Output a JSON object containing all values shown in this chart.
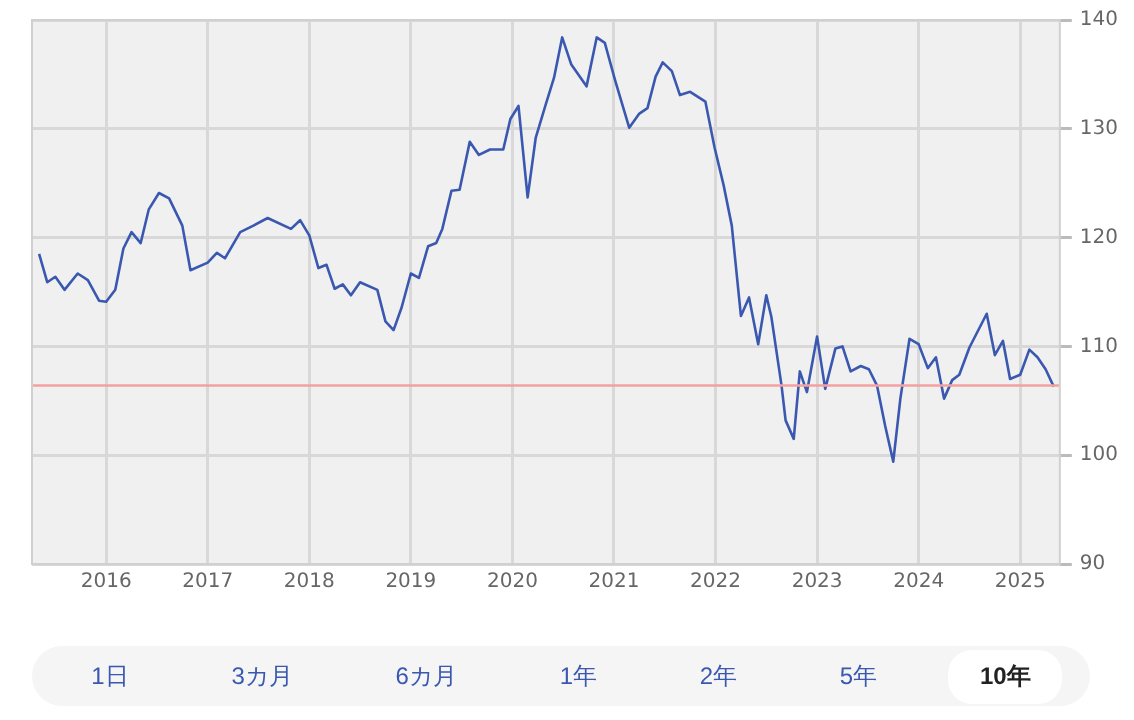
{
  "chart_data": {
    "type": "line",
    "x": [
      2015.34,
      2015.42,
      2015.5,
      2015.59,
      2015.72,
      2015.82,
      2015.93,
      2016.0,
      2016.09,
      2016.17,
      2016.25,
      2016.34,
      2016.42,
      2016.52,
      2016.62,
      2016.75,
      2016.83,
      2017.0,
      2017.09,
      2017.17,
      2017.32,
      2017.45,
      2017.59,
      2017.82,
      2017.91,
      2018.0,
      2018.09,
      2018.17,
      2018.25,
      2018.33,
      2018.41,
      2018.5,
      2018.67,
      2018.75,
      2018.83,
      2018.91,
      2019.0,
      2019.08,
      2019.17,
      2019.25,
      2019.31,
      2019.4,
      2019.48,
      2019.58,
      2019.67,
      2019.78,
      2019.91,
      2019.98,
      2020.06,
      2020.15,
      2020.23,
      2020.33,
      2020.41,
      2020.49,
      2020.58,
      2020.73,
      2020.83,
      2020.91,
      2021.01,
      2021.15,
      2021.25,
      2021.33,
      2021.41,
      2021.48,
      2021.57,
      2021.65,
      2021.75,
      2021.9,
      2021.99,
      2022.08,
      2022.16,
      2022.25,
      2022.33,
      2022.42,
      2022.5,
      2022.55,
      2022.65,
      2022.69,
      2022.77,
      2022.83,
      2022.9,
      2023.0,
      2023.08,
      2023.18,
      2023.25,
      2023.33,
      2023.43,
      2023.51,
      2023.59,
      2023.67,
      2023.75,
      2023.82,
      2023.91,
      2024.0,
      2024.09,
      2024.17,
      2024.25,
      2024.33,
      2024.4,
      2024.5,
      2024.67,
      2024.75,
      2024.83,
      2024.9,
      2025.0,
      2025.09,
      2025.17,
      2025.25,
      2025.33
    ],
    "series": [
      {
        "color": "#3a58b0",
        "values": [
          118.5,
          115.9,
          116.4,
          115.2,
          116.7,
          116.1,
          114.2,
          114.1,
          115.2,
          119.0,
          120.5,
          119.5,
          122.6,
          124.1,
          123.6,
          121.1,
          117.0,
          117.7,
          118.6,
          118.1,
          120.5,
          121.1,
          121.8,
          120.8,
          121.6,
          120.2,
          117.2,
          117.5,
          115.3,
          115.7,
          114.7,
          115.9,
          115.2,
          112.3,
          111.5,
          113.6,
          116.7,
          116.3,
          119.2,
          119.5,
          120.8,
          124.3,
          124.4,
          128.8,
          127.6,
          128.1,
          128.1,
          130.9,
          132.1,
          123.7,
          129.2,
          132.3,
          134.7,
          138.4,
          135.9,
          133.9,
          138.4,
          137.9,
          134.5,
          130.1,
          131.4,
          131.9,
          134.8,
          136.1,
          135.3,
          133.1,
          133.4,
          132.5,
          128.3,
          124.8,
          121.1,
          112.8,
          114.5,
          110.2,
          114.7,
          112.7,
          106.4,
          103.2,
          101.5,
          107.7,
          105.8,
          110.9,
          106.1,
          109.8,
          110.0,
          107.7,
          108.2,
          107.9,
          106.4,
          102.7,
          99.4,
          105.2,
          110.7,
          110.2,
          108.0,
          109.0,
          105.2,
          106.9,
          107.4,
          109.9,
          113.0,
          109.2,
          110.5,
          107.0,
          107.4,
          109.7,
          109.0,
          107.9,
          106.3
        ]
      }
    ],
    "xlim": [
      2015.27,
      2025.39
    ],
    "xticks": [
      2016,
      2017,
      2018,
      2019,
      2020,
      2021,
      2022,
      2023,
      2024,
      2025
    ],
    "ylim": [
      90,
      140
    ],
    "yticks": [
      90,
      100,
      110,
      120,
      130,
      140
    ],
    "ref_lines": [
      {
        "axis": "y",
        "value": 106.4,
        "color": "#f4a0a0"
      }
    ],
    "grid": true,
    "legend": false,
    "marker": "none",
    "line_style": "solid",
    "annotations": [
      "1日",
      "3カ月",
      "6カ月",
      "1年",
      "2年",
      "5年",
      "10年"
    ]
  }
}
